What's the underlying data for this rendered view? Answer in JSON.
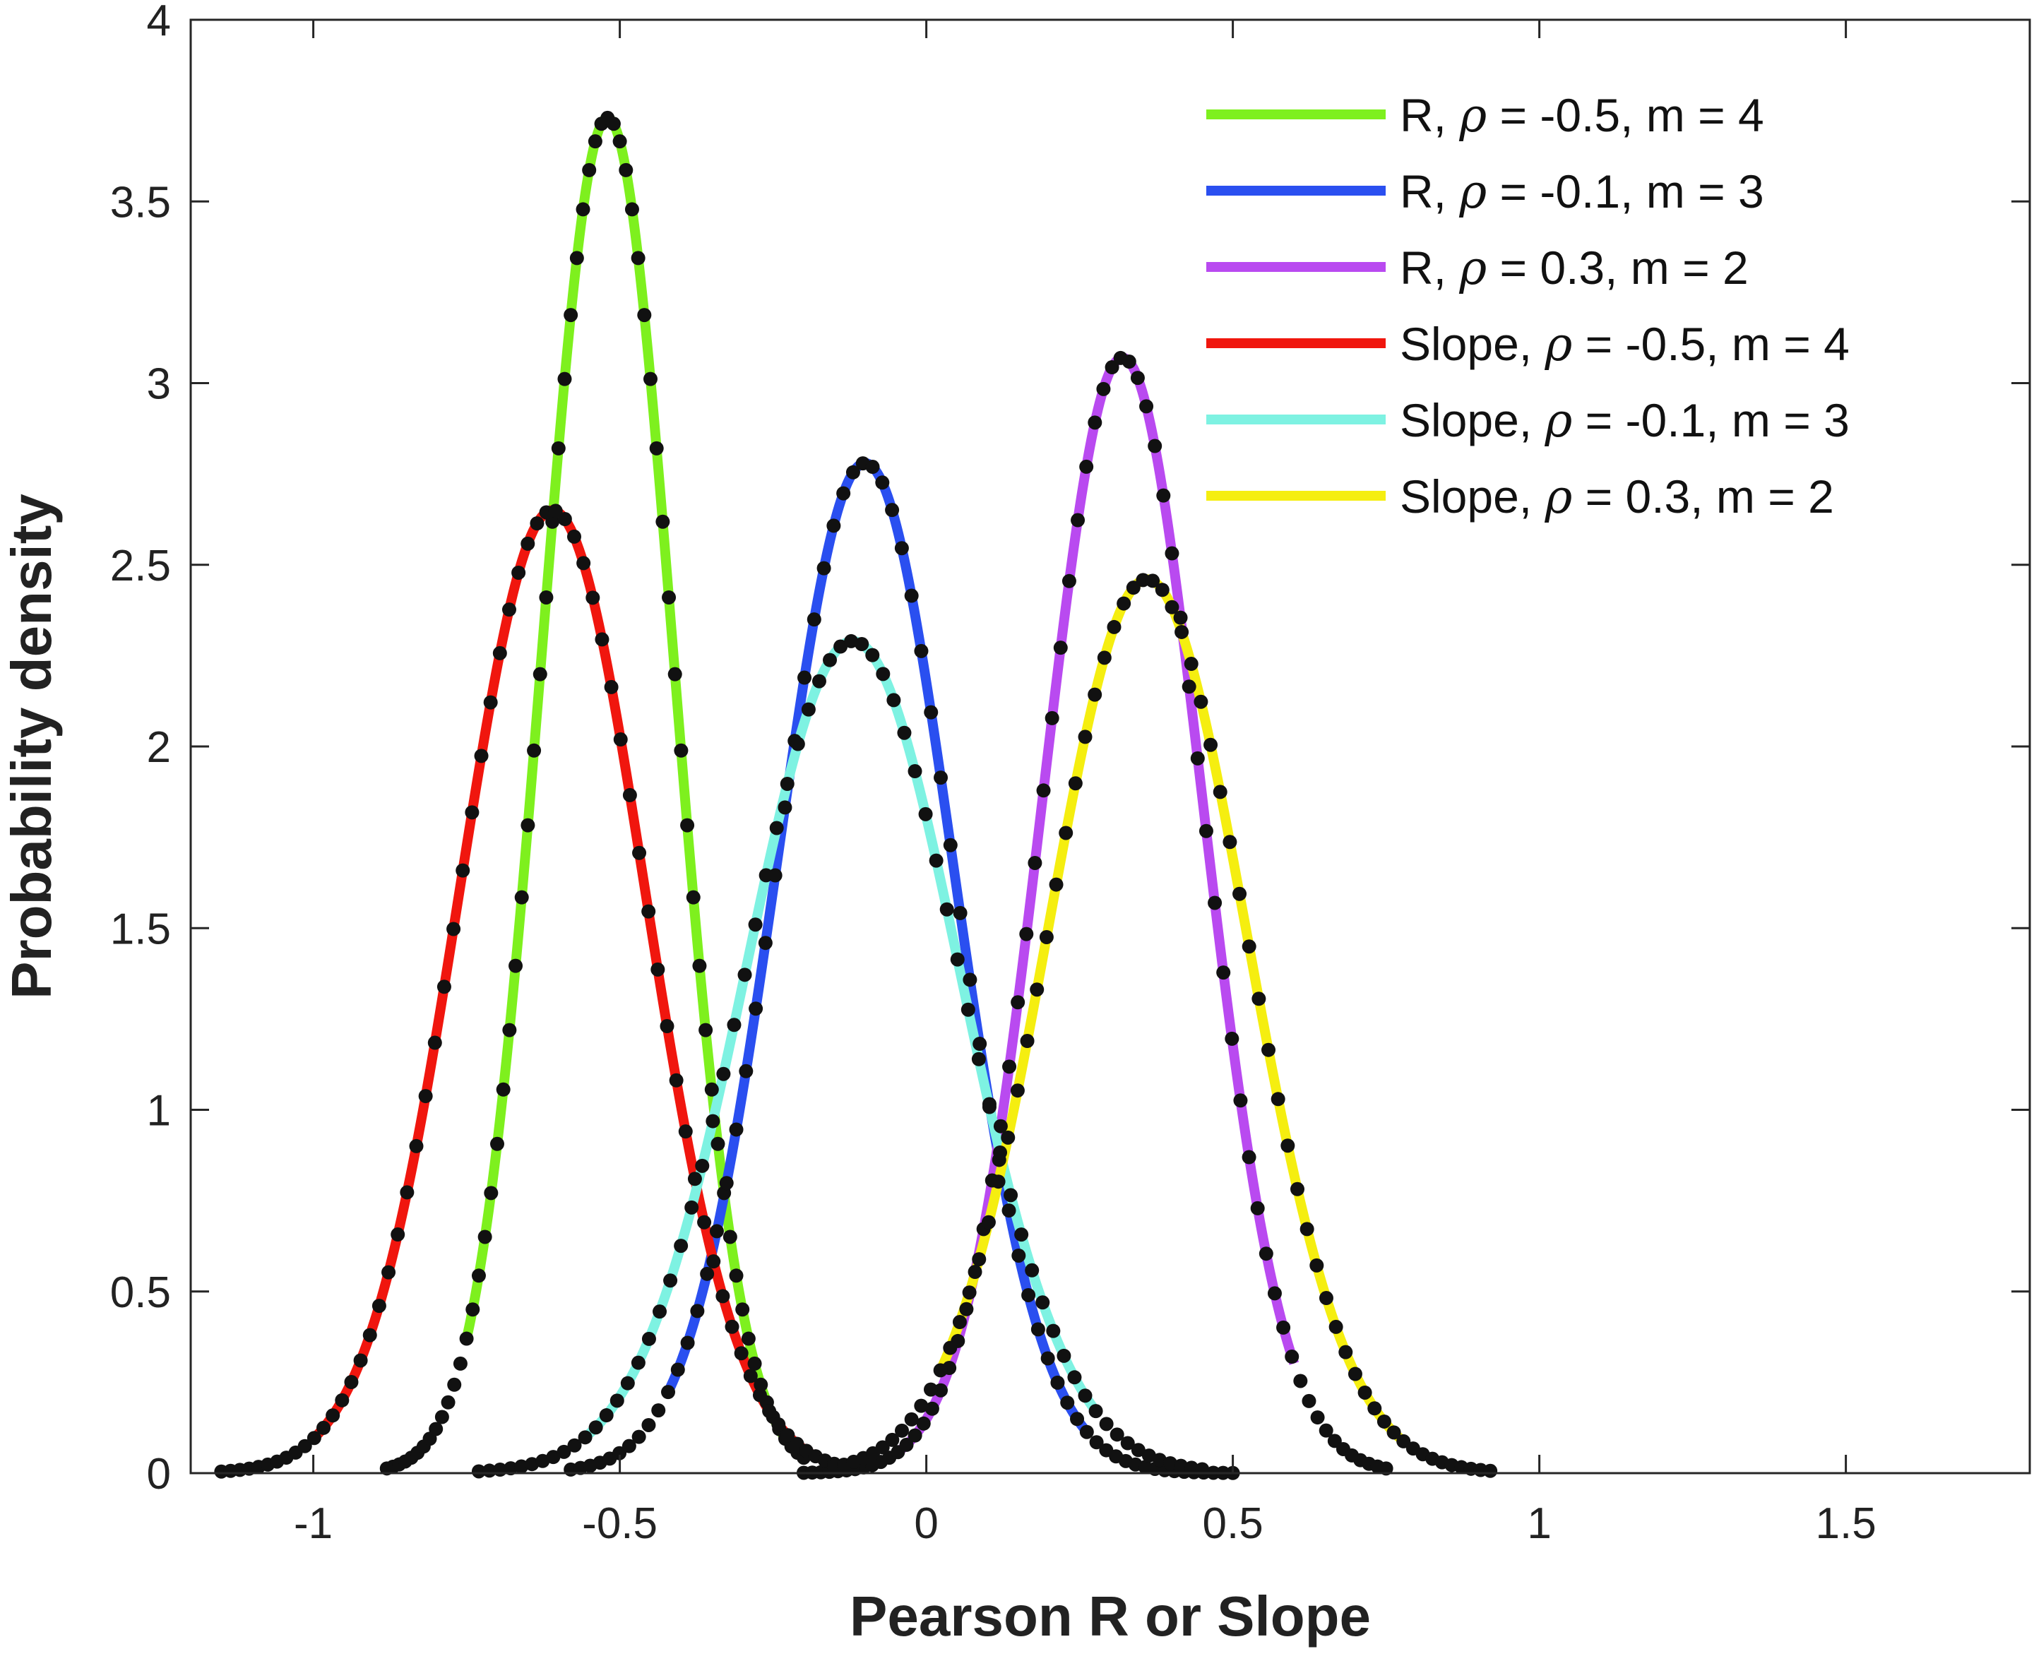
{
  "chart_data": {
    "type": "line",
    "xlabel": "Pearson R or Slope",
    "ylabel": "Probability density",
    "xlim": [
      -1.2,
      1.8
    ],
    "ylim": [
      0,
      4
    ],
    "x_ticks": [
      -1,
      -0.5,
      0,
      0.5,
      1,
      1.5
    ],
    "x_tick_labels": [
      "-1",
      "-0.5",
      "0",
      "0.5",
      "1",
      "1.5"
    ],
    "y_ticks": [
      0,
      0.5,
      1,
      1.5,
      2,
      2.5,
      3,
      3.5,
      4
    ],
    "y_tick_labels": [
      "0",
      "0.5",
      "1",
      "1.5",
      "2",
      "2.5",
      "3",
      "3.5",
      "4"
    ],
    "grid": false,
    "legend_position": "top-right",
    "marker_color": "#111111",
    "series": [
      {
        "name": "R, ρ = -0.5, m = 4",
        "prefix": "R, ",
        "rho_symbol": "ρ",
        "suffix": " = -0.5, m = 4",
        "color": "#7ef01e",
        "mean": -0.52,
        "sd": 0.107,
        "peak": 3.73,
        "line_range": [
          -0.75,
          -0.21
        ],
        "marker_range": [
          -0.88,
          -0.2
        ]
      },
      {
        "name": "R, ρ = -0.1, m = 3",
        "prefix": "R, ",
        "rho_symbol": "ρ",
        "suffix": " = -0.1, m = 3",
        "color": "#2a4ff0",
        "mean": -0.1,
        "sd": 0.143,
        "peak": 2.78,
        "line_range": [
          -0.42,
          0.26
        ],
        "marker_range": [
          -0.58,
          0.5
        ]
      },
      {
        "name": "R, ρ = 0.3, m = 2",
        "prefix": "R, ",
        "rho_symbol": "ρ",
        "suffix": " = 0.3, m = 2",
        "color": "#b94af0",
        "mean": 0.32,
        "sd": 0.13,
        "peak": 3.07,
        "line_range": [
          -0.04,
          0.6
        ],
        "marker_range": [
          -0.2,
          0.75
        ]
      },
      {
        "name": "Slope, ρ = -0.5, m = 4",
        "prefix": "Slope, ",
        "rho_symbol": "ρ",
        "suffix": " = -0.5, m = 4",
        "color": "#f0160e",
        "mean": -0.61,
        "sd": 0.151,
        "peak": 2.65,
        "line_range": [
          -1.0,
          -0.14
        ],
        "marker_range": [
          -1.15,
          -0.12
        ]
      },
      {
        "name": "Slope, ρ = -0.1, m = 3",
        "prefix": "Slope, ",
        "rho_symbol": "ρ",
        "suffix": " = -0.1, m = 3",
        "color": "#7ef2e2",
        "mean": -0.12,
        "sd": 0.174,
        "peak": 2.29,
        "line_range": [
          -0.55,
          0.28
        ],
        "marker_range": [
          -0.73,
          0.45
        ]
      },
      {
        "name": "Slope, ρ = 0.3, m = 2",
        "prefix": "Slope, ",
        "rho_symbol": "ρ",
        "suffix": " = 0.3, m = 2",
        "color": "#f5ee10",
        "mean": 0.36,
        "sd": 0.162,
        "peak": 2.46,
        "line_range": [
          0.02,
          0.78
        ],
        "marker_range": [
          -0.15,
          0.92
        ]
      }
    ]
  }
}
